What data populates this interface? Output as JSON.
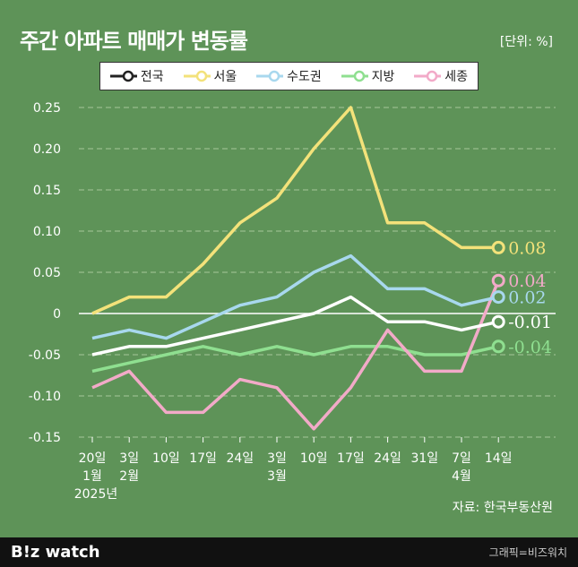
{
  "title": "주간 아파트 매매가 변동률",
  "unit": "[단위: %]",
  "source": "자료: 한국부동산원",
  "footer": {
    "logo": "B!z watch",
    "credit": "그래픽=비즈워치"
  },
  "chart_data": {
    "type": "line",
    "title": "주간 아파트 매매가 변동률",
    "categories": [
      [
        "20일",
        "1월",
        "2025년"
      ],
      [
        "3일",
        "2월"
      ],
      [
        "10일"
      ],
      [
        "17일"
      ],
      [
        "24일"
      ],
      [
        "3일",
        "3월"
      ],
      [
        "10일"
      ],
      [
        "17일"
      ],
      [
        "24일"
      ],
      [
        "31일"
      ],
      [
        "7일",
        "4월"
      ],
      [
        "14일"
      ]
    ],
    "ylim": [
      -0.15,
      0.25
    ],
    "yticks": [
      "0.25",
      "0.20",
      "0.15",
      "0.10",
      "0.05",
      "0",
      "-0.05",
      "-0.10",
      "-0.15"
    ],
    "grid": true,
    "legend": "top",
    "series": [
      {
        "name": "전국",
        "color": "#ffffff",
        "values": [
          -0.05,
          -0.04,
          -0.04,
          -0.03,
          -0.02,
          -0.01,
          0,
          0.02,
          -0.01,
          -0.01,
          -0.02,
          -0.01
        ],
        "end_label": "-0.01"
      },
      {
        "name": "서울",
        "color": "#f3e27a",
        "values": [
          0,
          0.02,
          0.02,
          0.06,
          0.11,
          0.14,
          0.2,
          0.25,
          0.11,
          0.11,
          0.08,
          0.08
        ],
        "end_label": "0.08"
      },
      {
        "name": "수도권",
        "color": "#a8d8ee",
        "values": [
          -0.03,
          -0.02,
          -0.03,
          -0.01,
          0.01,
          0.02,
          0.05,
          0.07,
          0.03,
          0.03,
          0.01,
          0.02
        ],
        "end_label": "0.02"
      },
      {
        "name": "지방",
        "color": "#8fdf90",
        "values": [
          -0.07,
          -0.06,
          -0.05,
          -0.04,
          -0.05,
          -0.04,
          -0.05,
          -0.04,
          -0.04,
          -0.05,
          -0.05,
          -0.04
        ],
        "end_label": "-0.04"
      },
      {
        "name": "세종",
        "color": "#f2aac8",
        "values": [
          -0.09,
          -0.07,
          -0.12,
          -0.12,
          -0.08,
          -0.09,
          -0.14,
          -0.09,
          -0.02,
          -0.07,
          -0.07,
          0.04
        ],
        "end_label": "0.04"
      }
    ]
  }
}
